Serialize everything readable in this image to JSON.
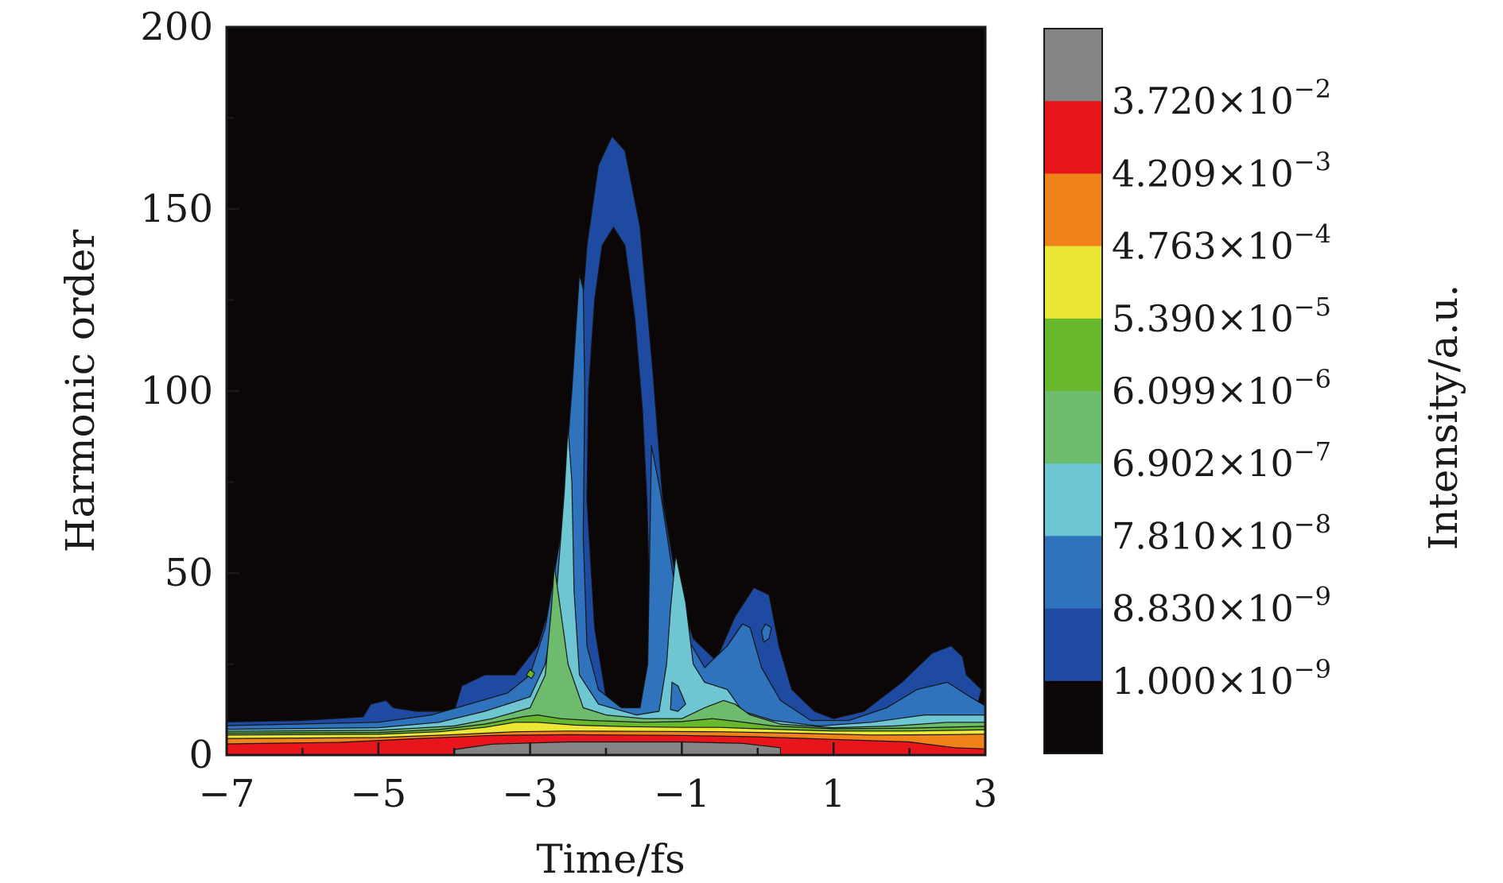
{
  "chart_data": {
    "type": "heatmap",
    "subtype": "filled-contour time-frequency map",
    "xlabel": "Time/fs",
    "ylabel": "Harmonic order",
    "xlim": [
      -7,
      3
    ],
    "ylim": [
      0,
      200
    ],
    "x_ticks": [
      "−7",
      "−5",
      "−3",
      "−1",
      "1",
      "3"
    ],
    "x_tick_values": [
      -7,
      -5,
      -3,
      -1,
      1,
      3
    ],
    "y_ticks": [
      "0",
      "50",
      "100",
      "150",
      "200"
    ],
    "y_tick_values": [
      0,
      50,
      100,
      150,
      200
    ],
    "background_color": "#0a0706",
    "colorbar": {
      "title": "Intensity/a.u.",
      "levels": [
        {
          "mantissa": "3.720",
          "exponent": "−2",
          "value": 0.0372,
          "color": "#e8161c"
        },
        {
          "mantissa": "4.209",
          "exponent": "−3",
          "value": 0.004209,
          "color": "#ef8219"
        },
        {
          "mantissa": "4.763",
          "exponent": "−4",
          "value": 0.0004763,
          "color": "#ece736"
        },
        {
          "mantissa": "5.390",
          "exponent": "−5",
          "value": 5.39e-05,
          "color": "#68b82e"
        },
        {
          "mantissa": "6.099",
          "exponent": "−6",
          "value": 6.099e-06,
          "color": "#6dbb6c"
        },
        {
          "mantissa": "6.902",
          "exponent": "−7",
          "value": 6.902e-07,
          "color": "#6dc6d2"
        },
        {
          "mantissa": "7.810",
          "exponent": "−8",
          "value": 7.81e-08,
          "color": "#2e73bc"
        },
        {
          "mantissa": "8.830",
          "exponent": "−9",
          "value": 8.83e-09,
          "color": "#1f4aa1"
        },
        {
          "mantissa": "1.000",
          "exponent": "−9",
          "value": 1e-09,
          "color": "#0a0706"
        }
      ],
      "color_bands_top_to_bottom": [
        "#848484",
        "#e8161c",
        "#ef8219",
        "#ece736",
        "#68b82e",
        "#6dbb6c",
        "#6dc6d2",
        "#2e73bc",
        "#1f4aa1",
        "#0a0706"
      ]
    },
    "features": [
      {
        "description": "main burst",
        "time_fs": -1.8,
        "max_harmonic_order": 170
      },
      {
        "description": "secondary burst",
        "time_fs": -1.1,
        "max_harmonic_order": 55
      },
      {
        "description": "side lobe",
        "time_fs": 0.0,
        "max_harmonic_order": 46
      },
      {
        "description": "late lobe",
        "time_fs": 2.5,
        "max_harmonic_order": 30
      }
    ]
  }
}
